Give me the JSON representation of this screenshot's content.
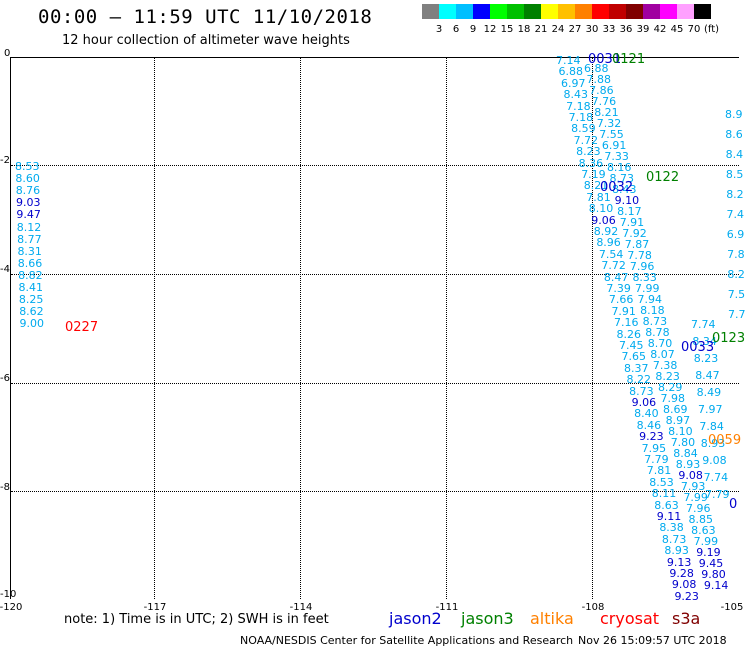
{
  "header": {
    "title": "00:00 – 11:59 UTC 11/10/2018",
    "subtitle": "12 hour collection of altimeter wave heights"
  },
  "scale": {
    "colors": [
      "#808080",
      "#00ffff",
      "#00bfff",
      "#0000ff",
      "#00ff00",
      "#00c000",
      "#008000",
      "#ffff00",
      "#ffc000",
      "#ff8000",
      "#ff0000",
      "#c00000",
      "#800000",
      "#a000a0",
      "#ff00ff",
      "#ffa0ff",
      "#000000"
    ],
    "labels": [
      "3",
      "6",
      "9",
      "12",
      "15",
      "18",
      "21",
      "24",
      "27",
      "30",
      "33",
      "36",
      "39",
      "42",
      "45",
      "70"
    ],
    "unit": "(ft)"
  },
  "map": {
    "y_labels": [
      "0",
      "-2",
      "-4",
      "-6",
      "-8",
      "-10"
    ],
    "x_labels": [
      "-120",
      "-117",
      "-114",
      "-111",
      "-108",
      "-105"
    ]
  },
  "colors": {
    "jason2": "#0000cc",
    "jason3": "#008000",
    "altika": "#ff8000",
    "cryosat": "#ff0000",
    "s3a": "#800000",
    "lightblue": "#00aaee"
  },
  "tracks": {
    "left_values": [
      "8.53",
      "8.60",
      "8.76",
      "9.03",
      "9.47",
      "8.12",
      "8.77",
      "8.31",
      "8.66",
      "8.82",
      "8.41",
      "8.25",
      "8.62",
      "9.00"
    ],
    "left_colors": [
      "lb",
      "lb",
      "lb",
      "dk",
      "dk",
      "lb",
      "lb",
      "lb",
      "lb",
      "lb",
      "lb",
      "lb",
      "lb",
      "lb"
    ],
    "a_values": [
      "7.14",
      "6.88",
      "6.97",
      "8.43",
      "7.18",
      "7.18",
      "8.59",
      "7.72",
      "8.23",
      "8.36",
      "7.19",
      "8.21",
      "7.81",
      "8.10",
      "9.06",
      "8.92",
      "8.96",
      "7.54",
      "7.72",
      "8.47",
      "7.39",
      "7.66",
      "7.91",
      "7.16",
      "8.26",
      "7.45",
      "7.65",
      "8.37",
      "8.22",
      "8.73",
      "9.06",
      "8.40",
      "8.46",
      "9.23",
      "7.95",
      "7.79",
      "7.81",
      "8.53",
      "8.11",
      "8.63",
      "9.11",
      "8.38",
      "8.73",
      "8.93",
      "9.13",
      "9.28",
      "9.08",
      "9.23"
    ],
    "a_colors": [
      "lb",
      "lb",
      "lb",
      "lb",
      "lb",
      "lb",
      "lb",
      "lb",
      "lb",
      "lb",
      "lb",
      "lb",
      "lb",
      "lb",
      "dk",
      "lb",
      "lb",
      "lb",
      "lb",
      "lb",
      "lb",
      "lb",
      "lb",
      "lb",
      "lb",
      "lb",
      "lb",
      "lb",
      "lb",
      "lb",
      "dk",
      "lb",
      "lb",
      "dk",
      "lb",
      "lb",
      "lb",
      "lb",
      "lb",
      "lb",
      "dk",
      "lb",
      "lb",
      "lb",
      "dk",
      "dk",
      "dk",
      "dk"
    ],
    "b_values": [
      "6.88",
      "7.88",
      "7.86",
      "7.76",
      "8.21",
      "7.32",
      "7.55",
      "6.91",
      "7.33",
      "8.16",
      "8.73",
      "8.43",
      "9.10",
      "8.17",
      "7.91",
      "7.92",
      "7.87",
      "7.78",
      "7.96",
      "8.33",
      "7.99",
      "7.94",
      "8.18",
      "8.73",
      "8.78",
      "8.70",
      "8.07",
      "7.38",
      "8.23",
      "8.29",
      "7.98",
      "8.69",
      "8.97",
      "8.10",
      "7.80",
      "8.84",
      "8.93",
      "9.08",
      "7.93",
      "7.99",
      "7.96",
      "8.85",
      "8.63",
      "7.99",
      "9.19",
      "9.45",
      "9.80",
      "9.14"
    ],
    "b_colors": [
      "lb",
      "lb",
      "lb",
      "lb",
      "lb",
      "lb",
      "lb",
      "lb",
      "lb",
      "lb",
      "lb",
      "lb",
      "dk",
      "lb",
      "lb",
      "lb",
      "lb",
      "lb",
      "lb",
      "lb",
      "lb",
      "lb",
      "lb",
      "lb",
      "lb",
      "lb",
      "lb",
      "lb",
      "lb",
      "lb",
      "lb",
      "lb",
      "lb",
      "lb",
      "lb",
      "lb",
      "lb",
      "dk",
      "lb",
      "lb",
      "lb",
      "lb",
      "lb",
      "lb",
      "dk",
      "dk",
      "dk",
      "dk"
    ],
    "c_values": [
      "8.9",
      "8.6",
      "8.4",
      "8.5",
      "8.2",
      "7.4",
      "6.9",
      "7.8",
      "8.2",
      "7.5",
      "7.7"
    ],
    "d_values": [
      "7.74",
      "8.34",
      "8.23",
      "8.47",
      "8.49",
      "7.97",
      "7.84",
      "8.93",
      "9.08",
      "7.74",
      "7.79"
    ]
  },
  "times": [
    {
      "text": "0031",
      "color": "jason2"
    },
    {
      "text": "0121",
      "color": "jason3"
    },
    {
      "text": "0122",
      "color": "jason3"
    },
    {
      "text": "0032",
      "color": "jason2"
    },
    {
      "text": "0227",
      "color": "cryosat"
    },
    {
      "text": "0123",
      "color": "jason3"
    },
    {
      "text": "0033",
      "color": "jason2"
    },
    {
      "text": "0059",
      "color": "altika"
    },
    {
      "text": "0",
      "color": "jason2"
    }
  ],
  "footer": {
    "note": "note:  1) Time is in UTC;  2) SWH is in feet",
    "legend": [
      {
        "label": "jason2",
        "color": "#0000cc"
      },
      {
        "label": "jason3",
        "color": "#008000"
      },
      {
        "label": "altika",
        "color": "#ff8000"
      },
      {
        "label": "cryosat",
        "color": "#ff0000"
      },
      {
        "label": "s3a",
        "color": "#800000"
      }
    ],
    "credit": "NOAA/NESDIS Center for Satellite Applications and Research",
    "date": "Nov 26 15:09:57 UTC 2018"
  }
}
